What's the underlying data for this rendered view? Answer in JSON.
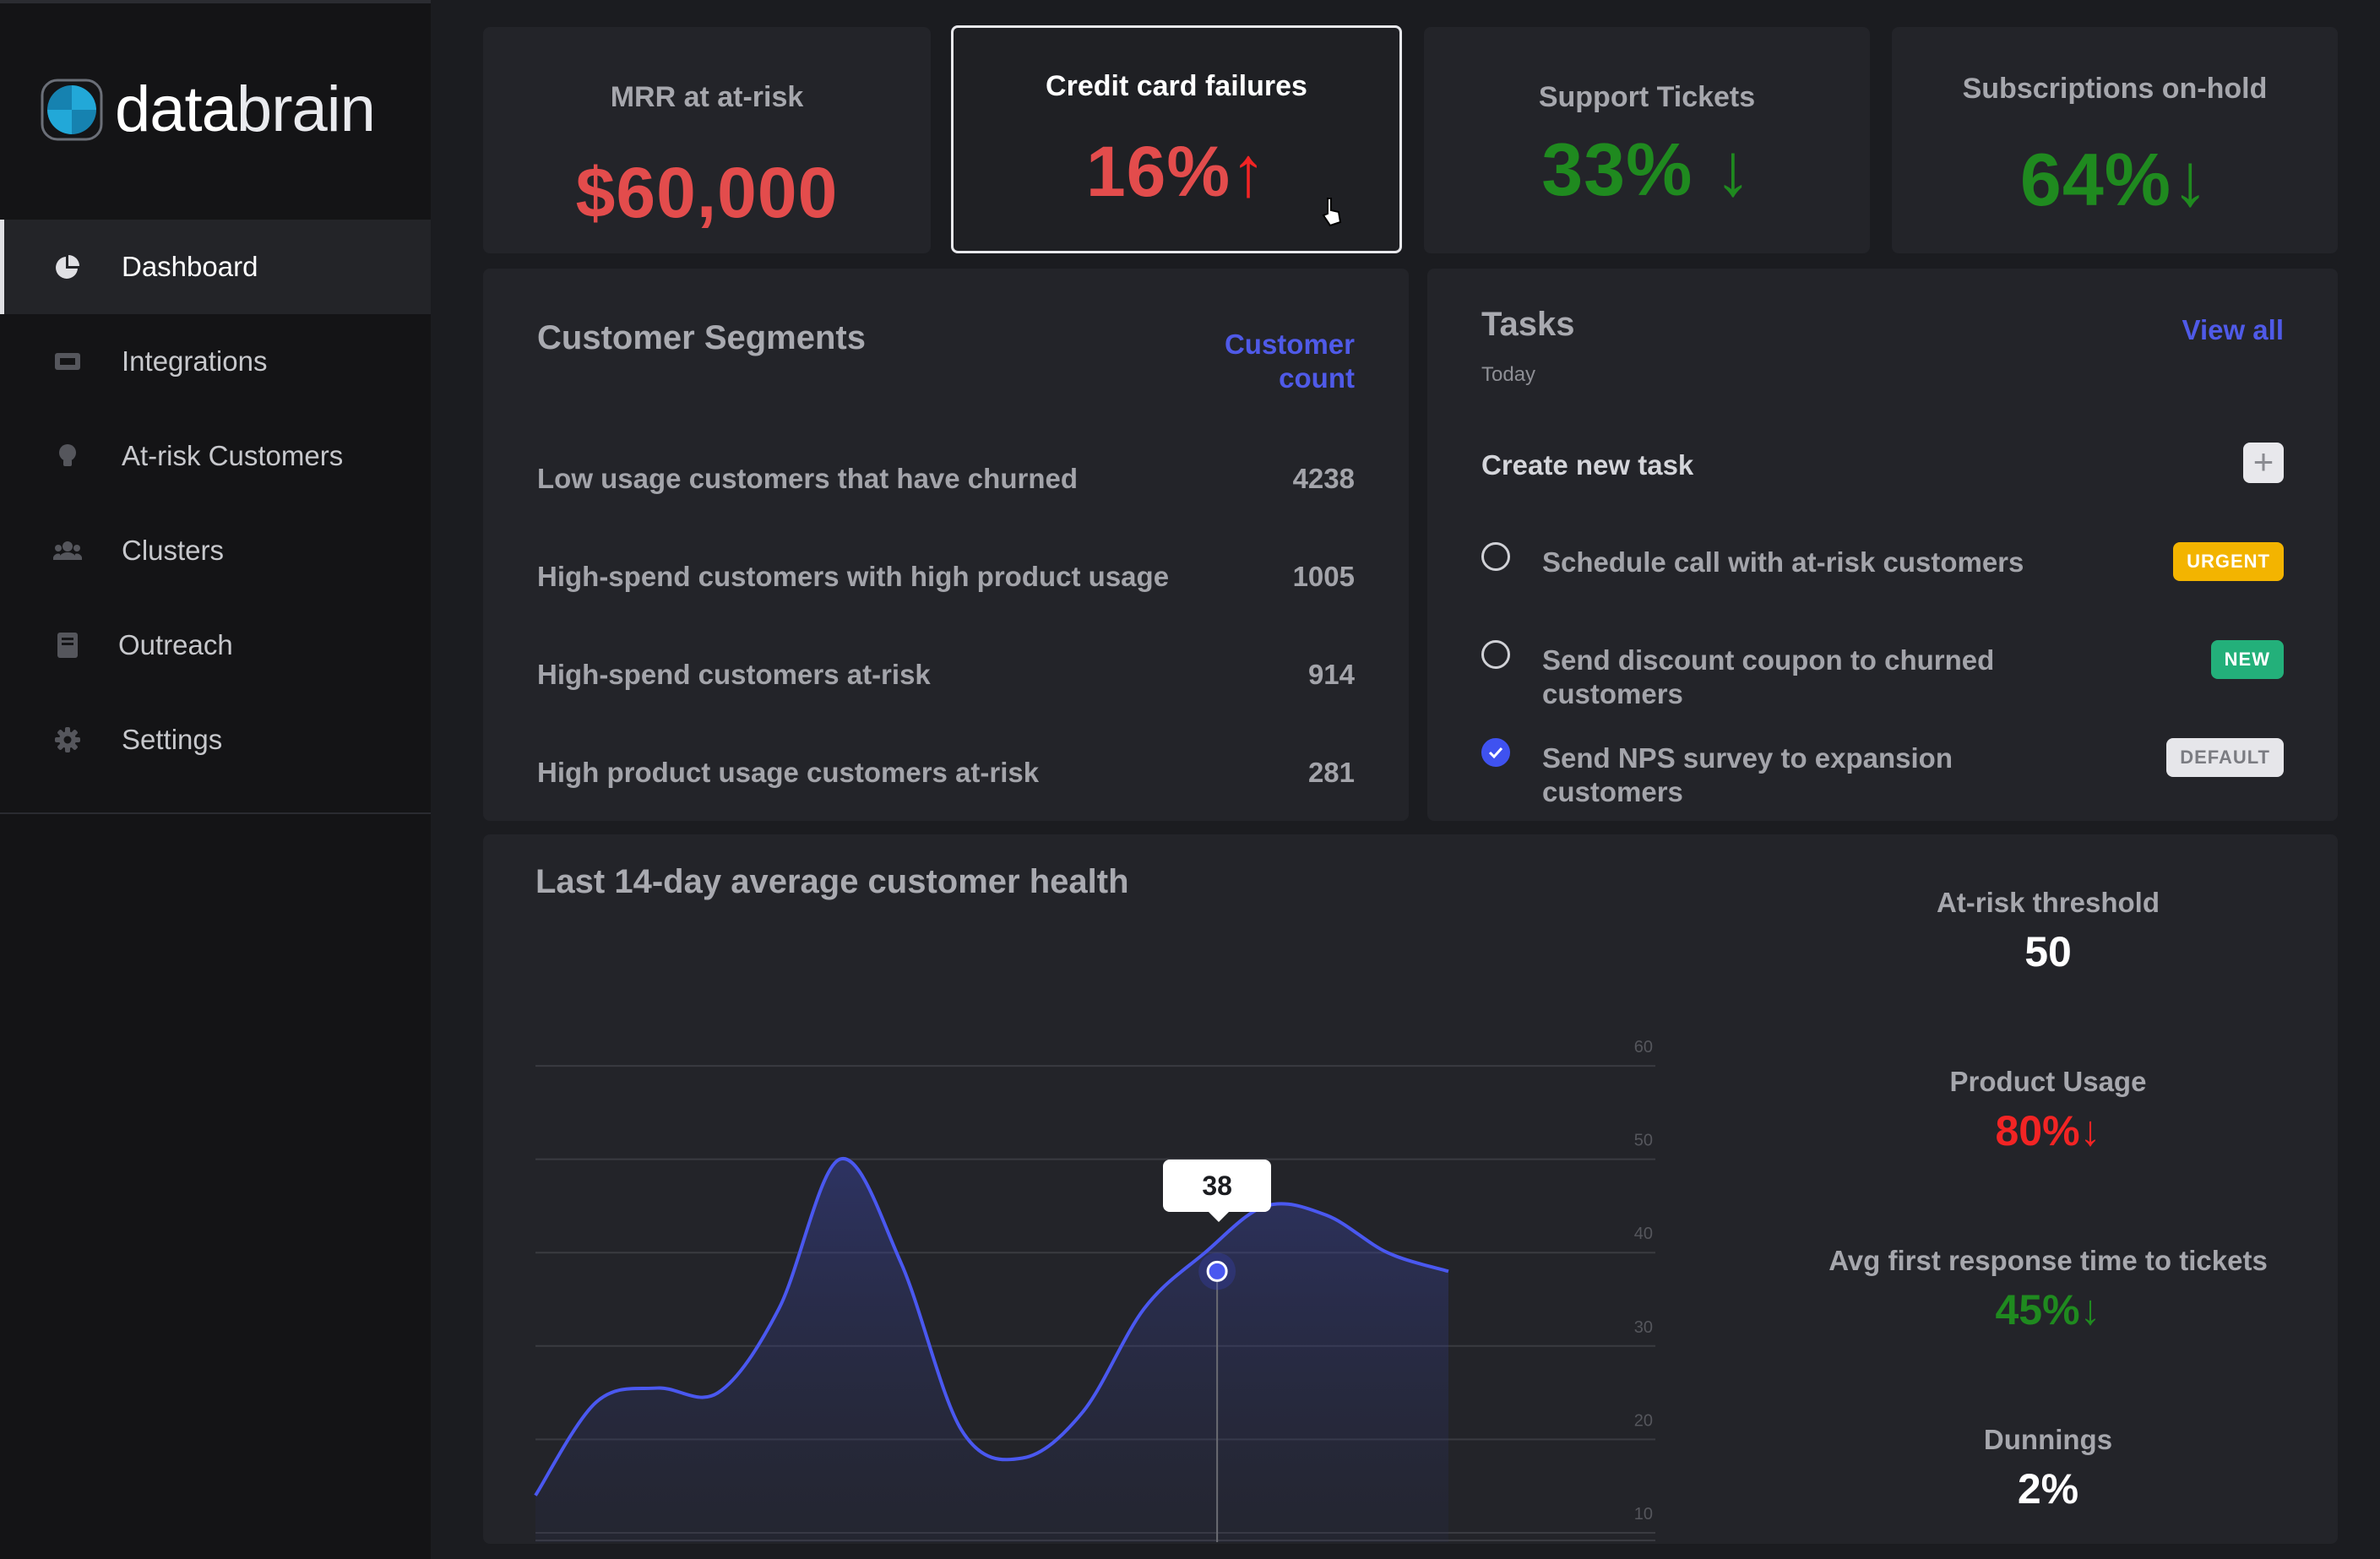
{
  "brand": {
    "name_bold": "data",
    "name_thin": "brain"
  },
  "sidebar": {
    "items": [
      {
        "label": "Dashboard",
        "icon": "pie-chart-icon",
        "active": true
      },
      {
        "label": "Integrations",
        "icon": "ticket-icon"
      },
      {
        "label": "At-risk Customers",
        "icon": "lightbulb-icon"
      },
      {
        "label": "Clusters",
        "icon": "users-icon"
      },
      {
        "label": "Outreach",
        "icon": "book-icon"
      },
      {
        "label": "Settings",
        "icon": "gear-icon"
      }
    ]
  },
  "kpis": [
    {
      "label": "MRR at at-risk",
      "value": "$60,000",
      "arrow": "",
      "color": "#e34c4c"
    },
    {
      "label": "Credit card failures",
      "value": "16%",
      "arrow": "↑",
      "color": "#e34c4c"
    },
    {
      "label": "Support Tickets",
      "value": "33%",
      "arrow": "↓",
      "color": "#1f8a1f"
    },
    {
      "label": "Subscriptions on-hold",
      "value": "64%",
      "arrow": "↓",
      "color": "#1f8a1f"
    }
  ],
  "segments": {
    "title": "Customer Segments",
    "count_link_line1": "Customer",
    "count_link_line2": "count",
    "rows": [
      {
        "name": "Low usage customers that have churned",
        "count": "4238"
      },
      {
        "name": "High-spend customers with high product usage",
        "count": "1005"
      },
      {
        "name": "High-spend customers at-risk",
        "count": "914"
      },
      {
        "name": "High product usage customers at-risk",
        "count": "281"
      }
    ]
  },
  "tasks": {
    "title": "Tasks",
    "view_all": "View all",
    "subtitle": "Today",
    "create_label": "Create new task",
    "items": [
      {
        "text": "Schedule call with at-risk customers",
        "badge": "URGENT",
        "checked": false
      },
      {
        "text": "Send discount coupon to churned customers",
        "badge": "NEW",
        "checked": false
      },
      {
        "text": "Send NPS survey to expansion customers",
        "badge": "DEFAULT",
        "checked": true
      }
    ]
  },
  "health": {
    "title": "Last 14-day average customer health",
    "tooltip": "38"
  },
  "chart_data": {
    "type": "area",
    "title": "Last 14-day average customer health",
    "y_ticks": [
      "60",
      "50",
      "40",
      "30",
      "20",
      "10"
    ],
    "ylim": [
      9,
      62
    ],
    "x": [
      0,
      1,
      2,
      3,
      4,
      5,
      6,
      7,
      8,
      9,
      10,
      11,
      12,
      13,
      14,
      15
    ],
    "values": [
      14,
      24,
      25.5,
      25,
      34,
      50,
      39,
      21,
      18,
      23,
      34,
      40,
      45,
      44,
      40,
      38
    ],
    "highlight": {
      "x": 11.2,
      "value": 38
    },
    "grid": true,
    "color": "#4a58f0"
  },
  "metrics": [
    {
      "label": "At-risk threshold",
      "value": "50",
      "arrow": "",
      "color": "#ffffff"
    },
    {
      "label": "Product Usage",
      "value": "80%",
      "arrow": "↓",
      "color": "#f22424"
    },
    {
      "label": "Avg first response time to tickets",
      "value": "45%",
      "arrow": "↓",
      "color": "#1f8a1f"
    },
    {
      "label": "Dunnings",
      "value": "2%",
      "arrow": "",
      "color": "#ffffff"
    }
  ],
  "colors": {
    "accent": "#4f5ae8",
    "logo": "#22a8d8"
  }
}
